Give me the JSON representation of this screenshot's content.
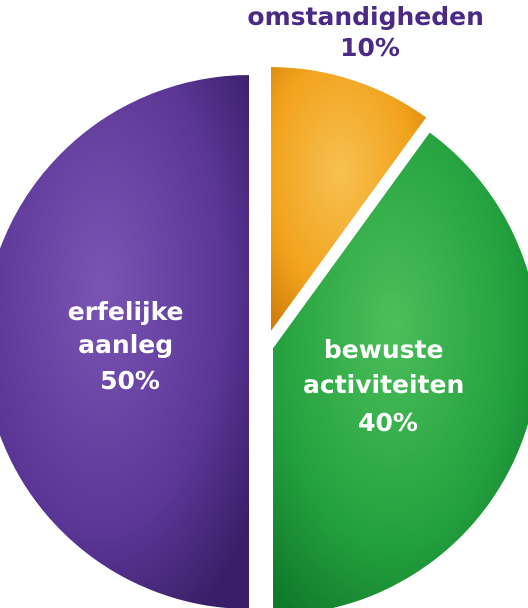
{
  "chart_data": {
    "type": "pie",
    "slices": [
      {
        "label": [
          "erfelijke",
          "aanleg"
        ],
        "value_text": "50%",
        "value": 50,
        "color": "#5b3696",
        "light": "#7a55b4",
        "dark": "#3a1f68"
      },
      {
        "label": [
          "omstandigheden"
        ],
        "value_text": "10%",
        "value": 10,
        "color": "#f1a21c",
        "light": "#f7c050",
        "dark": "#cf7f08"
      },
      {
        "label": [
          "bewuste",
          "activiteiten"
        ],
        "value_text": "40%",
        "value": 40,
        "color": "#23a03e",
        "light": "#4bbf5a",
        "dark": "#117a2a"
      }
    ],
    "start": "top",
    "direction": "clockwise"
  }
}
